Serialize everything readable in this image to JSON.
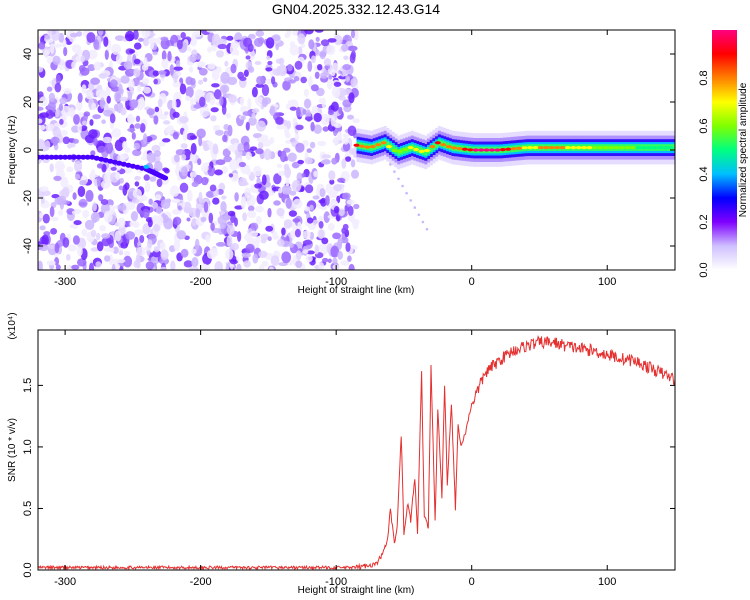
{
  "title": "GN04.2025.332.12.43.G14",
  "chart_data": [
    {
      "type": "heatmap",
      "xlabel": "Height of straight line (km)",
      "ylabel": "Frequency (Hz)",
      "xlim": [
        -320,
        150
      ],
      "ylim": [
        -50,
        50
      ],
      "xticks": [
        -300,
        -200,
        -100,
        0,
        100
      ],
      "yticks": [
        -40,
        -20,
        0,
        20,
        40
      ],
      "grid": false,
      "colorbar": {
        "label": "Normalized spectral amplitude",
        "range": [
          0,
          1
        ],
        "ticks": [
          "0.0",
          "0.2",
          "0.4",
          "0.6",
          "0.8"
        ],
        "colors": [
          "#ffffff",
          "#cfc0ff",
          "#7f00ff",
          "#0000ff",
          "#00bfff",
          "#00ff80",
          "#80ff00",
          "#ffff00",
          "#ff8000",
          "#ff0000",
          "#ff0080"
        ]
      },
      "noise_region": {
        "x_range": [
          -320,
          -85
        ],
        "y_range": [
          -50,
          50
        ],
        "level": 0.15
      },
      "signal_trace": [
        {
          "x": -85,
          "y": 2,
          "amp": 0.85
        },
        {
          "x": -75,
          "y": 1,
          "amp": 0.75
        },
        {
          "x": -65,
          "y": 3,
          "amp": 0.8
        },
        {
          "x": -55,
          "y": -1,
          "amp": 0.6
        },
        {
          "x": -45,
          "y": 1,
          "amp": 0.65
        },
        {
          "x": -35,
          "y": -1,
          "amp": 0.7
        },
        {
          "x": -25,
          "y": 3,
          "amp": 0.85
        },
        {
          "x": -15,
          "y": 1,
          "amp": 0.75
        },
        {
          "x": 0,
          "y": 0,
          "amp": 0.95
        },
        {
          "x": 20,
          "y": 0,
          "amp": 0.95
        },
        {
          "x": 40,
          "y": 1,
          "amp": 0.7
        },
        {
          "x": 60,
          "y": 1,
          "amp": 0.8
        },
        {
          "x": 80,
          "y": 1,
          "amp": 0.7
        },
        {
          "x": 100,
          "y": 1,
          "amp": 0.6
        },
        {
          "x": 120,
          "y": 1,
          "amp": 0.55
        },
        {
          "x": 150,
          "y": 1,
          "amp": 0.5
        }
      ],
      "secondary_trace": [
        {
          "x": -320,
          "y": -3
        },
        {
          "x": -280,
          "y": -3
        },
        {
          "x": -240,
          "y": -8
        },
        {
          "x": -225,
          "y": -12
        }
      ]
    },
    {
      "type": "line",
      "xlabel": "Height of straight line (km)",
      "ylabel": "SNR (10 * v/v)",
      "y_multiplier": "(x10⁴)",
      "xlim": [
        -320,
        150
      ],
      "ylim": [
        0,
        1.95
      ],
      "xticks": [
        -300,
        -200,
        -100,
        0,
        100
      ],
      "yticks": [
        "0.0",
        "0.5",
        "1.0",
        "1.5"
      ],
      "grid": false,
      "color": "#e53030",
      "series": [
        {
          "x": [
            -320,
            -200,
            -85,
            -70,
            -65,
            -62,
            -60,
            -57,
            -55,
            -52,
            -50,
            -47,
            -45,
            -42,
            -40,
            -37,
            -35,
            -32,
            -30,
            -27,
            -25,
            -22,
            -20,
            -18,
            -15,
            -12,
            -10,
            -8,
            -5,
            -3,
            0,
            10,
            20,
            30,
            40,
            50,
            60,
            70,
            80,
            90,
            100,
            110,
            120,
            130,
            140,
            150
          ],
          "values": [
            0.02,
            0.02,
            0.02,
            0.05,
            0.15,
            0.25,
            0.5,
            0.2,
            0.35,
            1.1,
            0.3,
            0.55,
            0.4,
            0.75,
            0.3,
            1.6,
            0.45,
            0.35,
            1.65,
            0.4,
            1.3,
            0.6,
            1.5,
            0.7,
            1.35,
            0.5,
            1.2,
            1.0,
            1.1,
            1.2,
            1.35,
            1.6,
            1.7,
            1.78,
            1.82,
            1.85,
            1.85,
            1.82,
            1.8,
            1.78,
            1.75,
            1.72,
            1.7,
            1.65,
            1.6,
            1.55
          ]
        }
      ]
    }
  ]
}
